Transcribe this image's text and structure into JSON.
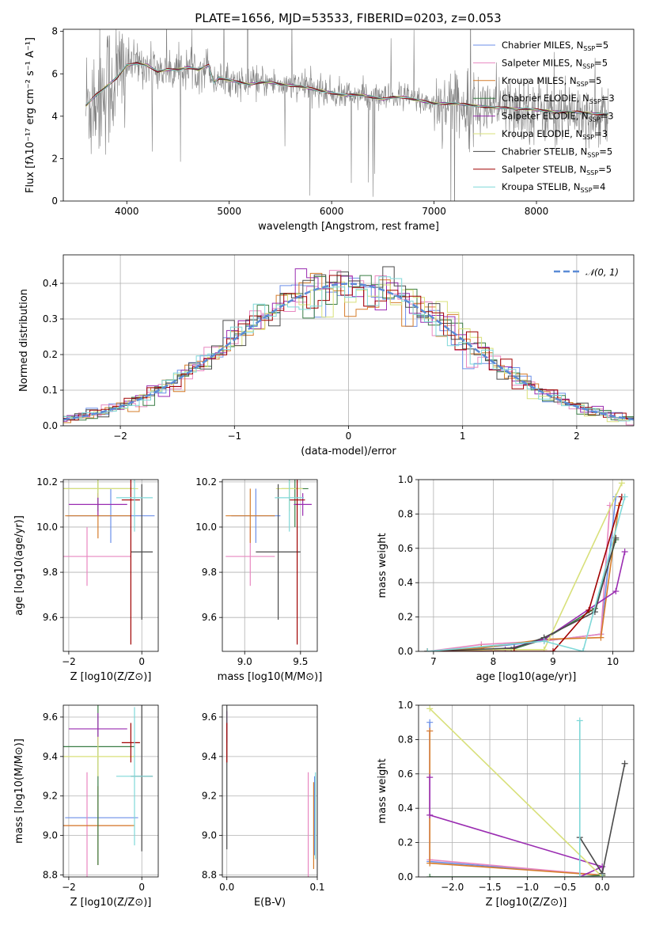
{
  "figure_title": "PLATE=1656, MJD=53533, FIBERID=0203, z=0.053",
  "series_colors": [
    "#6b8fe8",
    "#e887c0",
    "#d67c2a",
    "#3a7d45",
    "#9a2cb1",
    "#d8e07a",
    "#4a4a4a",
    "#a00000",
    "#7fd8d8"
  ],
  "chart_data": [
    {
      "id": "spectrum",
      "type": "line",
      "title": "PLATE=1656, MJD=53533, FIBERID=0203, z=0.053",
      "xlabel": "wavelength [Angstrom, rest frame]",
      "ylabel": "Flux [fλ10⁻¹⁷ erg cm⁻² s⁻¹ A⁻¹]",
      "xlim": [
        3380,
        8950
      ],
      "ylim": [
        0,
        8.1
      ],
      "xticks": [
        4000,
        5000,
        6000,
        7000,
        8000
      ],
      "yticks": [
        0,
        2,
        4,
        6,
        8
      ],
      "grid": false,
      "legend_position": "top-right",
      "data_color": "#808080",
      "model_x": [
        3600,
        3700,
        3800,
        3900,
        4000,
        4100,
        4200,
        4300,
        4400,
        4500,
        4600,
        4700,
        4800,
        4850,
        4900,
        5000,
        5100,
        5200,
        5300,
        5400,
        5500,
        5600,
        5700,
        5800,
        5900,
        6000,
        6100,
        6200,
        6300,
        6400,
        6500,
        6600,
        6700,
        6800,
        6900,
        7000,
        7100,
        7200,
        7300,
        7400,
        7500,
        7600,
        7700,
        7800,
        7900,
        8000,
        8100,
        8200,
        8300,
        8400,
        8500,
        8600,
        8700
      ],
      "model_y": [
        4.5,
        5.0,
        5.4,
        5.8,
        6.4,
        6.5,
        6.4,
        6.1,
        6.2,
        6.2,
        6.3,
        6.2,
        6.4,
        5.6,
        5.8,
        5.7,
        5.6,
        5.5,
        5.6,
        5.6,
        5.5,
        5.45,
        5.4,
        5.3,
        5.2,
        5.1,
        5.0,
        5.0,
        5.0,
        4.9,
        4.8,
        4.9,
        4.9,
        4.8,
        4.7,
        4.6,
        4.6,
        4.6,
        4.55,
        4.5,
        4.45,
        4.4,
        4.4,
        4.35,
        4.35,
        4.3,
        4.25,
        4.2,
        4.2,
        4.2,
        4.15,
        4.1,
        4.1
      ],
      "series": [
        {
          "name": "Chabrier MILES",
          "nssp": "5"
        },
        {
          "name": "Salpeter MILES",
          "nssp": "5"
        },
        {
          "name": "Kroupa MILES",
          "nssp": "5"
        },
        {
          "name": "Chabrier ELODIE",
          "nssp": "3"
        },
        {
          "name": "Salpeter ELODIE",
          "nssp": "3"
        },
        {
          "name": "Kroupa ELODIE",
          "nssp": "3"
        },
        {
          "name": "Chabrier STELIB",
          "nssp": "5"
        },
        {
          "name": "Salpeter STELIB",
          "nssp": "5"
        },
        {
          "name": "Kroupa STELIB",
          "nssp": "4"
        }
      ]
    },
    {
      "id": "residuals",
      "type": "line",
      "xlabel": "(data-model)/error",
      "ylabel": "Normed distribution",
      "xlim": [
        -2.5,
        2.5
      ],
      "ylim": [
        0,
        0.48
      ],
      "xticks": [
        -2,
        -1,
        0,
        1,
        2
      ],
      "yticks": [
        0.0,
        0.1,
        0.2,
        0.3,
        0.4
      ],
      "grid": true,
      "legend_position": "top-right",
      "legend_label": "𝒩(0, 1)",
      "gaussian_color": "#5b8bd6",
      "bin_width": 0.1
    },
    {
      "id": "age-vs-z",
      "type": "scatter",
      "xlabel": "Z [log10(Z/Z⊙)]",
      "ylabel": "age  [log10(age/yr)]",
      "xlim": [
        -2.15,
        0.45
      ],
      "ylim": [
        9.45,
        10.21
      ],
      "xticks": [
        -2,
        0
      ],
      "yticks": [
        9.6,
        9.8,
        10.0,
        10.2
      ],
      "grid": true,
      "points": [
        {
          "x": -0.85,
          "y": 10.05,
          "xerr": 1.2,
          "yerr": 0.12,
          "c": 0
        },
        {
          "x": -1.5,
          "y": 9.87,
          "xerr": 1.2,
          "yerr": 0.13,
          "c": 1
        },
        {
          "x": -1.2,
          "y": 10.05,
          "xerr": 0.9,
          "yerr": 0.1,
          "c": 2
        },
        {
          "x": -1.2,
          "y": 10.17,
          "xerr": 1.0,
          "yerr": 0.1,
          "c": 3
        },
        {
          "x": -1.2,
          "y": 10.1,
          "xerr": 0.8,
          "yerr": 0.05,
          "c": 4
        },
        {
          "x": -1.2,
          "y": 10.17,
          "xerr": 1.1,
          "yerr": 0.04,
          "c": 5
        },
        {
          "x": 0.0,
          "y": 9.89,
          "xerr": 0.3,
          "yerr": 0.3,
          "c": 6
        },
        {
          "x": -0.3,
          "y": 10.12,
          "xerr": 0.25,
          "yerr": 0.64,
          "c": 7
        },
        {
          "x": -0.2,
          "y": 10.13,
          "xerr": 0.5,
          "yerr": 0.15,
          "c": 8
        }
      ]
    },
    {
      "id": "age-vs-mass",
      "type": "scatter",
      "xlabel": "mass [log10(M/M⊙)]",
      "ylabel": "",
      "xlim": [
        8.8,
        9.65
      ],
      "ylim": [
        9.45,
        10.21
      ],
      "xticks": [
        9.0,
        9.5
      ],
      "yticks": [
        9.6,
        9.8,
        10.0,
        10.2
      ],
      "grid": true,
      "points": [
        {
          "x": 9.1,
          "y": 10.05,
          "xerr": 0.22,
          "yerr": 0.12,
          "c": 0
        },
        {
          "x": 9.05,
          "y": 9.87,
          "xerr": 0.22,
          "yerr": 0.13,
          "c": 1
        },
        {
          "x": 9.05,
          "y": 10.05,
          "xerr": 0.22,
          "yerr": 0.12,
          "c": 2
        },
        {
          "x": 9.45,
          "y": 10.17,
          "xerr": 0.12,
          "yerr": 0.17,
          "c": 3
        },
        {
          "x": 9.52,
          "y": 10.1,
          "xerr": 0.08,
          "yerr": 0.05,
          "c": 4
        },
        {
          "x": 9.4,
          "y": 10.17,
          "xerr": 0.12,
          "yerr": 0.1,
          "c": 5
        },
        {
          "x": 9.3,
          "y": 9.89,
          "xerr": 0.2,
          "yerr": 0.3,
          "c": 6
        },
        {
          "x": 9.47,
          "y": 10.12,
          "xerr": 0.07,
          "yerr": 0.64,
          "c": 7
        },
        {
          "x": 9.4,
          "y": 10.13,
          "xerr": 0.13,
          "yerr": 0.15,
          "c": 8
        }
      ]
    },
    {
      "id": "mass-weight-vs-age",
      "type": "line",
      "xlabel": "age  [log10(age/yr)]",
      "ylabel": "mass weight",
      "xlim": [
        6.75,
        10.35
      ],
      "ylim": [
        0,
        1.0
      ],
      "xticks": [
        7,
        8,
        9,
        10
      ],
      "yticks": [
        0.0,
        0.2,
        0.4,
        0.6,
        0.8,
        1.0
      ],
      "grid": true,
      "series": [
        {
          "c": 0,
          "x": [
            6.9,
            7.8,
            8.85,
            9.8,
            10.05
          ],
          "y": [
            0.0,
            0.02,
            0.06,
            0.1,
            0.9
          ]
        },
        {
          "c": 1,
          "x": [
            6.9,
            7.8,
            8.85,
            9.8,
            9.95
          ],
          "y": [
            0.0,
            0.04,
            0.06,
            0.1,
            0.85
          ]
        },
        {
          "c": 2,
          "x": [
            6.9,
            7.8,
            8.85,
            9.8,
            10.1
          ],
          "y": [
            0.0,
            0.02,
            0.07,
            0.08,
            0.85
          ]
        },
        {
          "c": 3,
          "x": [
            6.9,
            8.3,
            8.85,
            9.7,
            10.05
          ],
          "y": [
            0.0,
            0.01,
            0.07,
            0.25,
            0.65
          ]
        },
        {
          "c": 4,
          "x": [
            6.9,
            8.2,
            8.85,
            10.05,
            10.2
          ],
          "y": [
            0.0,
            0.01,
            0.07,
            0.35,
            0.58
          ]
        },
        {
          "c": 5,
          "x": [
            6.9,
            8.0,
            8.85,
            10.15
          ],
          "y": [
            0.0,
            0.01,
            0.01,
            0.98
          ]
        },
        {
          "c": 6,
          "x": [
            6.9,
            8.35,
            8.85,
            9.7,
            10.05
          ],
          "y": [
            0.0,
            0.02,
            0.08,
            0.23,
            0.66
          ]
        },
        {
          "c": 7,
          "x": [
            6.9,
            8.35,
            9.0,
            9.6,
            10.15
          ],
          "y": [
            0.0,
            0.0,
            0.0,
            0.24,
            0.9
          ]
        },
        {
          "c": 8,
          "x": [
            6.9,
            8.85,
            9.5,
            10.2
          ],
          "y": [
            0.0,
            0.06,
            0.0,
            0.9
          ]
        }
      ]
    },
    {
      "id": "mass-vs-z",
      "type": "scatter",
      "xlabel": "Z [log10(Z/Z⊙)]",
      "ylabel": "mass [log10(M/M⊙)]",
      "xlim": [
        -2.15,
        0.45
      ],
      "ylim": [
        8.79,
        9.66
      ],
      "xticks": [
        -2,
        0
      ],
      "yticks": [
        8.8,
        9.0,
        9.2,
        9.4,
        9.6
      ],
      "grid": true,
      "points": [
        {
          "x": -1.1,
          "y": 9.09,
          "xerr": 1.0,
          "yerr": 0.0,
          "c": 0
        },
        {
          "x": -1.5,
          "y": 9.05,
          "xerr": 1.2,
          "yerr": 0.27,
          "c": 1
        },
        {
          "x": -1.2,
          "y": 9.05,
          "xerr": 1.0,
          "yerr": 0.2,
          "c": 2
        },
        {
          "x": -1.2,
          "y": 9.45,
          "xerr": 1.0,
          "yerr": 0.6,
          "c": 3
        },
        {
          "x": -1.2,
          "y": 9.54,
          "xerr": 0.8,
          "yerr": 0.08,
          "c": 4
        },
        {
          "x": -1.2,
          "y": 9.4,
          "xerr": 1.0,
          "yerr": 0.1,
          "c": 5
        },
        {
          "x": 0.0,
          "y": 9.3,
          "xerr": 0.3,
          "yerr": 0.38,
          "c": 6
        },
        {
          "x": -0.3,
          "y": 9.47,
          "xerr": 0.25,
          "yerr": 0.1,
          "c": 7
        },
        {
          "x": -0.2,
          "y": 9.3,
          "xerr": 0.5,
          "yerr": 0.35,
          "c": 8
        }
      ]
    },
    {
      "id": "mass-vs-ebv",
      "type": "scatter",
      "xlabel": "E(B-V)",
      "ylabel": "",
      "xlim": [
        -0.005,
        0.1
      ],
      "ylim": [
        8.79,
        9.66
      ],
      "xticks": [
        0.0,
        0.1
      ],
      "yticks": [
        8.8,
        9.0,
        9.2,
        9.4,
        9.6
      ],
      "grid": true,
      "points": [
        {
          "x": 0.0,
          "y": 9.55,
          "xerr": 0,
          "yerr": 0.08,
          "c": 4
        },
        {
          "x": 0.0,
          "y": 9.3,
          "xerr": 0,
          "yerr": 0.37,
          "c": 6
        },
        {
          "x": 0.0,
          "y": 9.47,
          "xerr": 0,
          "yerr": 0.1,
          "c": 7
        },
        {
          "x": 0.09,
          "y": 9.05,
          "xerr": 0,
          "yerr": 0.27,
          "c": 1
        },
        {
          "x": 0.096,
          "y": 9.05,
          "xerr": 0,
          "yerr": 0.22,
          "c": 2
        },
        {
          "x": 0.097,
          "y": 9.1,
          "xerr": 0,
          "yerr": 0.2,
          "c": 0
        },
        {
          "x": 0.098,
          "y": 9.1,
          "xerr": 0,
          "yerr": 0.22,
          "c": 8
        }
      ]
    },
    {
      "id": "mass-weight-vs-z",
      "type": "line",
      "xlabel": "Z [log10(Z/Z⊙)]",
      "ylabel": "mass weight",
      "xlim": [
        -2.45,
        0.42
      ],
      "ylim": [
        0,
        1.0
      ],
      "xticks": [
        -2.0,
        -1.5,
        -1.0,
        -0.5,
        0.0
      ],
      "yticks": [
        0.0,
        0.2,
        0.4,
        0.6,
        0.8,
        1.0
      ],
      "grid": true,
      "series": [
        {
          "c": 0,
          "x": [
            -2.3,
            -2.3,
            0.0
          ],
          "y": [
            0.9,
            0.09,
            0.01
          ]
        },
        {
          "c": 1,
          "x": [
            -2.3,
            -2.3,
            0.0
          ],
          "y": [
            0.85,
            0.1,
            0.01
          ]
        },
        {
          "c": 2,
          "x": [
            -2.3,
            -2.3,
            0.0
          ],
          "y": [
            0.85,
            0.08,
            0.01
          ]
        },
        {
          "c": 3,
          "x": [
            -2.3,
            -0.3,
            0.0
          ],
          "y": [
            0.0,
            0.0,
            0.01
          ]
        },
        {
          "c": 4,
          "x": [
            -2.3,
            -2.3,
            0.0,
            -0.3
          ],
          "y": [
            0.58,
            0.36,
            0.06,
            0.0
          ]
        },
        {
          "c": 5,
          "x": [
            -2.3,
            0.0
          ],
          "y": [
            0.98,
            0.0
          ]
        },
        {
          "c": 6,
          "x": [
            -0.3,
            0.0,
            0.3
          ],
          "y": [
            0.23,
            0.02,
            0.66
          ]
        },
        {
          "c": 7,
          "x": [
            -0.3,
            0.0
          ],
          "y": [
            0.0,
            0.0
          ]
        },
        {
          "c": 8,
          "x": [
            -0.3,
            -0.3,
            0.0
          ],
          "y": [
            0.91,
            0.0,
            0.0
          ]
        }
      ]
    }
  ]
}
